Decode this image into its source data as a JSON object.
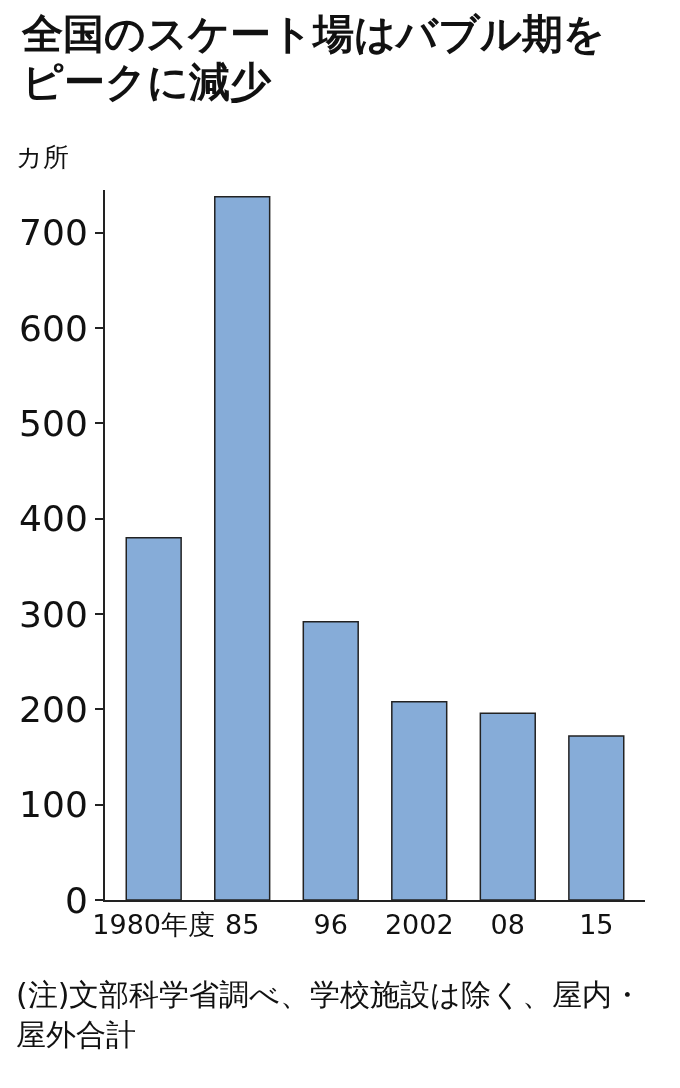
{
  "chart_data": {
    "type": "bar",
    "title": "全国のスケート場はバブル期をピークに減少",
    "ylabel": "カ所",
    "categories": [
      "1980年度",
      "85",
      "96",
      "2002",
      "08",
      "15"
    ],
    "values": [
      380,
      738,
      292,
      208,
      196,
      172
    ],
    "color": "#86acd8",
    "ylim": [
      0,
      745
    ],
    "yticks": [
      0,
      100,
      200,
      300,
      400,
      500,
      600,
      700
    ],
    "grid": false,
    "legend": false,
    "annotations": [
      "(注)文部科学省調べ、学校施設は除く、屋内・屋外合計"
    ]
  }
}
